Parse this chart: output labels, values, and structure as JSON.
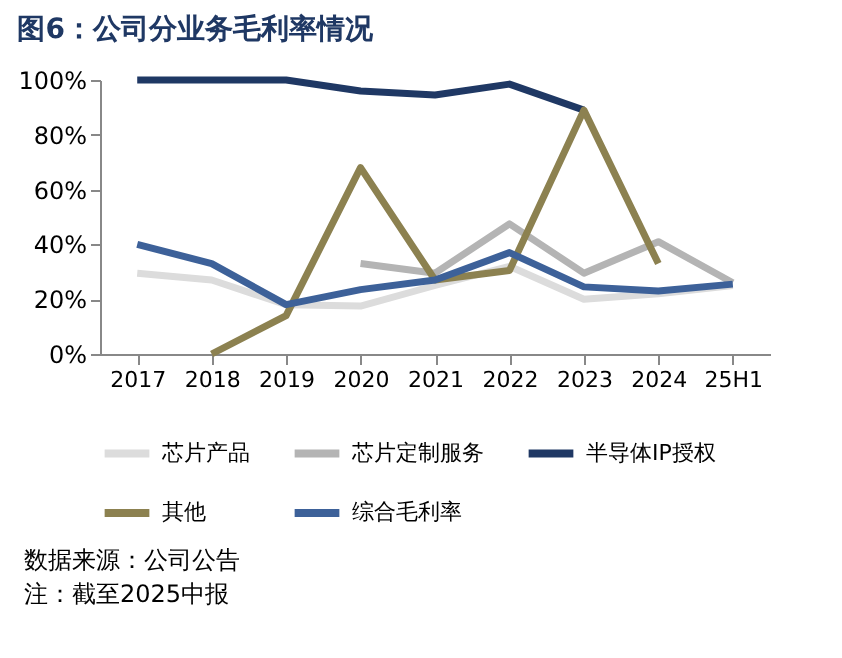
{
  "chart_data": {
    "type": "line",
    "title": "图6：公司分业务毛利率情况",
    "categories": [
      "2017",
      "2018",
      "2019",
      "2020",
      "2021",
      "2022",
      "2023",
      "2024",
      "25H1"
    ],
    "series": [
      {
        "name": "芯片产品",
        "color": "#dcdcdc",
        "values": [
          29.5,
          27,
          18,
          17.5,
          25,
          32,
          20,
          22,
          25
        ]
      },
      {
        "name": "芯片定制服务",
        "color": "#b4b4b4",
        "values": [
          null,
          null,
          null,
          33,
          29.5,
          47.5,
          29.5,
          41,
          26
        ]
      },
      {
        "name": "半导体IP授权",
        "color": "#1f3864",
        "values": [
          100,
          100,
          100,
          96,
          94.5,
          98.5,
          89,
          null,
          null
        ]
      },
      {
        "name": "其他",
        "color": "#8c8150",
        "values": [
          null,
          0,
          14,
          68,
          27,
          30.5,
          89,
          33,
          null
        ]
      },
      {
        "name": "综合毛利率",
        "color": "#3d6199",
        "values": [
          40,
          33,
          18,
          23.5,
          27,
          37,
          24.5,
          23,
          25.5
        ]
      }
    ],
    "ylim": [
      0,
      100
    ],
    "yticks": [
      {
        "value": 0,
        "label": "0%"
      },
      {
        "value": 20,
        "label": "20%"
      },
      {
        "value": 40,
        "label": "40%"
      },
      {
        "value": 60,
        "label": "60%"
      },
      {
        "value": 80,
        "label": "80%"
      },
      {
        "value": 100,
        "label": "100%"
      }
    ],
    "grid": false,
    "legend": "bottom",
    "marker": "none",
    "line_style": "solid",
    "annotations": [
      "数据来源：公司公告",
      "注：截至2025中报"
    ]
  }
}
